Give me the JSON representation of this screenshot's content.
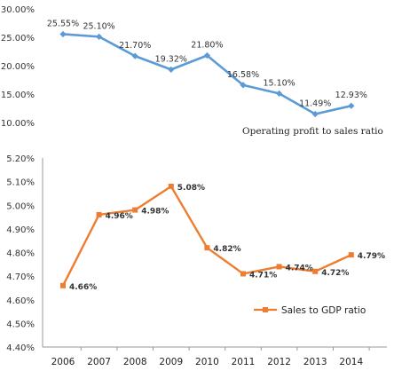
{
  "chart_data": [
    {
      "type": "line",
      "title": "",
      "x": [
        "2006",
        "2007",
        "2008",
        "2009",
        "2010",
        "2011",
        "2012",
        "2013",
        "2014"
      ],
      "ylim": [
        10,
        30
      ],
      "yticks": [
        "10.00%",
        "15.00%",
        "20.00%",
        "25.00%",
        "30.00%"
      ],
      "series": [
        {
          "name": "Operating profit to sales ratio",
          "values": [
            25.55,
            25.1,
            21.7,
            19.32,
            21.8,
            16.58,
            15.1,
            11.49,
            12.93
          ],
          "labels": [
            "25.55%",
            "25.10%",
            "21.70%",
            "19.32%",
            "21.80%",
            "16.58%",
            "15.10%",
            "11.49%",
            "12.93%"
          ],
          "color": "#5b9bd5",
          "marker": "diamond"
        }
      ],
      "legend_position": "bottom-right"
    },
    {
      "type": "line",
      "title": "",
      "x": [
        "2006",
        "2007",
        "2008",
        "2009",
        "2010",
        "2011",
        "2012",
        "2013",
        "2014"
      ],
      "xticks": [
        "2006",
        "2007",
        "2008",
        "2009",
        "2010",
        "2011",
        "2012",
        "2013",
        "2014"
      ],
      "ylim": [
        4.4,
        5.2
      ],
      "yticks": [
        "4.40%",
        "4.50%",
        "4.60%",
        "4.70%",
        "4.80%",
        "4.90%",
        "5.00%",
        "5.10%",
        "5.20%"
      ],
      "series": [
        {
          "name": "Sales to GDP ratio",
          "values": [
            4.66,
            4.96,
            4.98,
            5.08,
            4.82,
            4.71,
            4.74,
            4.72,
            4.79
          ],
          "labels": [
            "4.66%",
            "4.96%",
            "4.98%",
            "5.08%",
            "4.82%",
            "4.71%",
            "4.74%",
            "4.72%",
            "4.79%"
          ],
          "color": "#ed7d31",
          "marker": "square"
        }
      ],
      "legend_position": "bottom-right"
    }
  ]
}
